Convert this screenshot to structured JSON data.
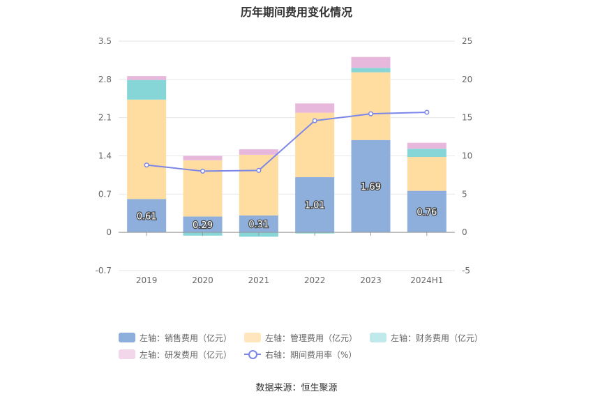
{
  "chart_data": {
    "type": "bar",
    "title": "历年期间费用变化情况",
    "categories": [
      "2019",
      "2020",
      "2021",
      "2022",
      "2023",
      "2024H1"
    ],
    "left_axis": {
      "ylim": [
        -0.7,
        3.5
      ],
      "ticks": [
        "3.5",
        "2.8",
        "2.1",
        "1.4",
        "0.7",
        "0",
        "-0.7"
      ]
    },
    "right_axis": {
      "ylim": [
        -5,
        25
      ],
      "ticks": [
        "25",
        "20",
        "15",
        "10",
        "5",
        "0",
        "-5"
      ]
    },
    "series": [
      {
        "name": "左轴：销售费用（亿元）",
        "type": "bar",
        "stack": true,
        "color": "#8eaedc",
        "values": [
          0.61,
          0.29,
          0.31,
          1.01,
          1.69,
          0.76
        ],
        "labels": [
          "0.61",
          "0.29",
          "0.31",
          "1.01",
          "1.69",
          "0.76"
        ]
      },
      {
        "name": "左轴：管理费用（亿元）",
        "type": "bar",
        "stack": true,
        "color": "#ffdca0",
        "values": [
          1.82,
          1.03,
          1.11,
          1.18,
          1.24,
          0.62
        ]
      },
      {
        "name": "左轴：财务费用（亿元）",
        "type": "bar",
        "stack": true,
        "color": "#86d6d8",
        "values": [
          0.36,
          -0.06,
          -0.08,
          -0.02,
          0.08,
          0.15
        ]
      },
      {
        "name": "左轴：研发费用（亿元）",
        "type": "bar",
        "stack": true,
        "color": "#e8b8dc",
        "values": [
          0.07,
          0.08,
          0.1,
          0.17,
          0.2,
          0.11
        ]
      },
      {
        "name": "右轴：期间费用率（%）",
        "type": "line",
        "axis": "right",
        "color": "#7b86e8",
        "values": [
          8.8,
          8.0,
          8.1,
          14.6,
          15.5,
          15.7
        ]
      }
    ]
  },
  "legend": {
    "sales": "左轴：销售费用（亿元）",
    "admin": "左轴：管理费用（亿元）",
    "finance": "左轴：财务费用（亿元）",
    "rd": "左轴：研发费用（亿元）",
    "rate": "右轴：期间费用率（%）"
  },
  "source": "数据来源：恒生聚源"
}
